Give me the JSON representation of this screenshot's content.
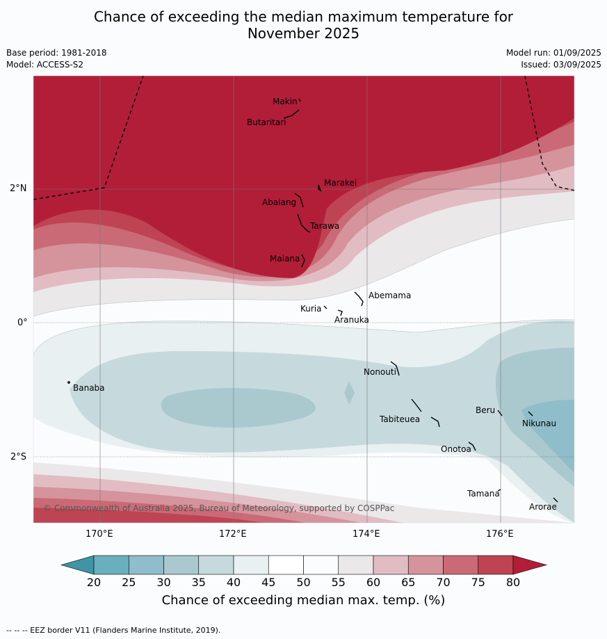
{
  "title_line1": "Chance of exceeding the median maximum temperature for",
  "title_line2": "November 2025",
  "meta": {
    "base_period": "Base period: 1981-2018",
    "model": "Model: ACCESS-S2",
    "model_run": "Model run: 01/09/2025",
    "issued": "Issued: 03/09/2025"
  },
  "axes": {
    "x_ticks": [
      "170°E",
      "172°E",
      "174°E",
      "176°E"
    ],
    "y_ticks": [
      "2°N",
      "0°",
      "2°S"
    ]
  },
  "islands": [
    "Makin",
    "Butaritari",
    "Marakei",
    "Abaiang",
    "Tarawa",
    "Maiana",
    "Abemama",
    "Kuria",
    "Aranuka",
    "Nonouti",
    "Banaba",
    "Tabiteuea",
    "Beru",
    "Nikunau",
    "Onotoa",
    "Tamana",
    "Arorae"
  ],
  "copyright": "© Commonwealth of Australia 2025, Bureau of Meteorology, supported by COSPPac",
  "colorbar": {
    "ticks": [
      "20",
      "25",
      "30",
      "35",
      "40",
      "45",
      "50",
      "55",
      "60",
      "65",
      "70",
      "75",
      "80"
    ],
    "title": "Chance of exceeding median max. temp. (%)",
    "colors": [
      "#3f94a6",
      "#6aafbd",
      "#8fbdc9",
      "#a9c9cf",
      "#c6dade",
      "#e9f0f2",
      "#ffffff",
      "#fbfcfd",
      "#ebe8ea",
      "#e2bcc3",
      "#d5939b",
      "#ca6a76",
      "#bf4453",
      "#b21e38"
    ]
  },
  "footer": "--  --  -- EEZ border V11 (Flanders Marine Institute, 2019)."
}
